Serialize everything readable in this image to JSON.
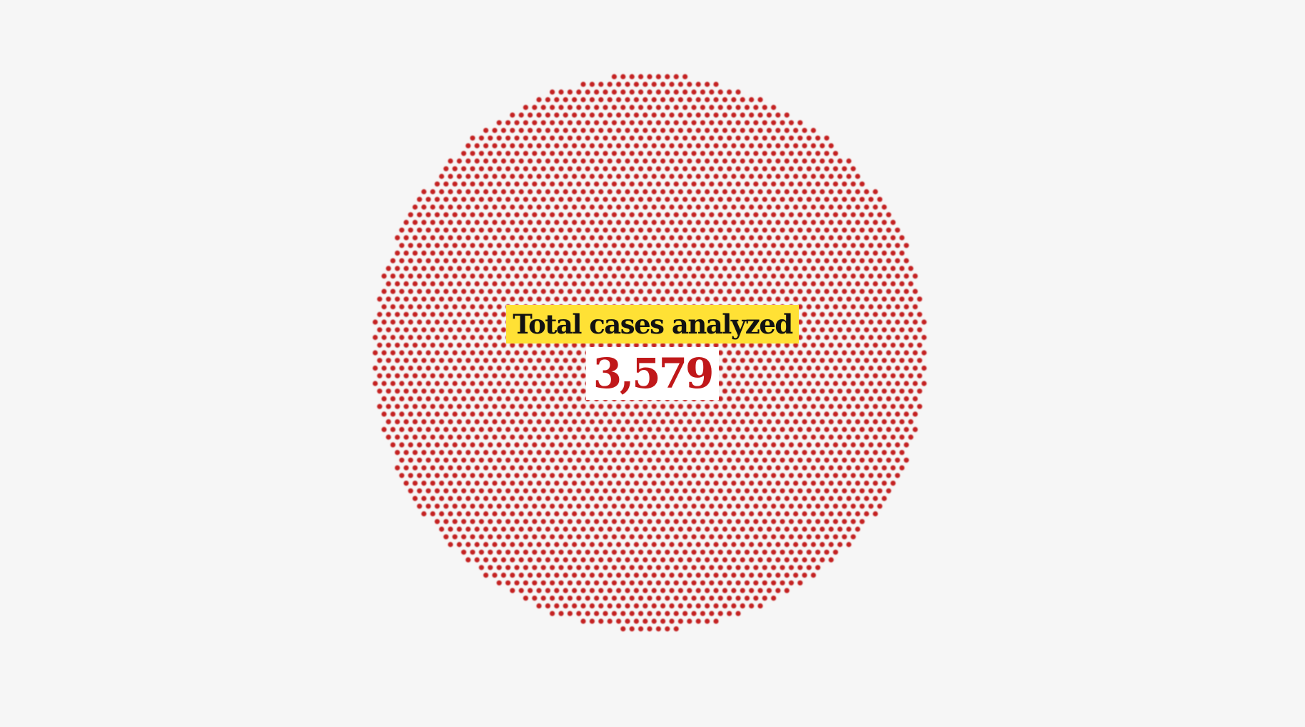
{
  "chart_data": {
    "type": "unit-dot",
    "title": "Total cases analyzed",
    "value": 3579,
    "value_label": "3,579",
    "dot_color": "#c42424",
    "highlight_color": "#ffe135"
  }
}
